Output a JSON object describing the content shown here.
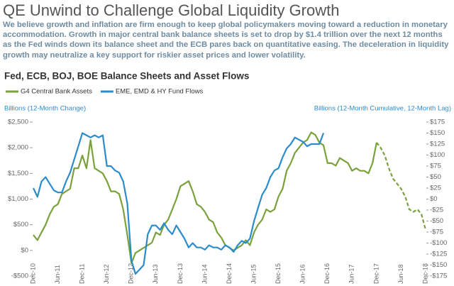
{
  "header": {
    "title": "QE Unwind to Challenge Global Liquidity Growth",
    "text": "We believe growth and inflation are firm enough to keep global policymakers moving toward a reduction in monetary accommodation. Growth in major central bank balance sheets is set to drop by $1.4 trillion over the next 12 months as the Fed winds down its balance sheet and the ECB pares back on quantitative easing. The deceleration in liquidity growth may neutralize a key support for riskier asset prices and lower volatility."
  },
  "chart_data": {
    "type": "line",
    "title": "Fed, ECB, BOJ, BOE Balance Sheets and Asset Flows",
    "ylabel": "Billions (12-Month Change)",
    "y2label": "Billions (12-Month Cumulative, 12-Month Lag)",
    "categories": [
      "Dec-10",
      null,
      null,
      null,
      null,
      null,
      "Jun-11",
      null,
      null,
      null,
      null,
      null,
      "Dec-11",
      null,
      null,
      null,
      null,
      null,
      "Jun-12",
      null,
      null,
      null,
      null,
      null,
      "Dec-12",
      null,
      null,
      null,
      null,
      null,
      "Jun-13",
      null,
      null,
      null,
      null,
      null,
      "Dec-13",
      null,
      null,
      null,
      null,
      null,
      "Jun-14",
      null,
      null,
      null,
      null,
      null,
      "Dec-14",
      null,
      null,
      null,
      null,
      null,
      "Jun-15",
      null,
      null,
      null,
      null,
      null,
      "Dec-15",
      null,
      null,
      null,
      null,
      null,
      "Jun-16",
      null,
      null,
      null,
      null,
      null,
      "Dec-16",
      null,
      null,
      null,
      null,
      null,
      "Jun-17",
      null,
      null,
      null,
      null,
      null,
      "Dec-17",
      null,
      null,
      null,
      null,
      null,
      "Jun-18",
      null,
      null,
      null,
      null,
      null,
      "Dec-18"
    ],
    "series": [
      {
        "name": "G4 Central Bank Assets",
        "color": "#7aa23c",
        "axis": "y",
        "dashed_from_index": 84,
        "values": [
          300,
          200,
          350,
          500,
          700,
          850,
          900,
          1100,
          1150,
          1200,
          1600,
          1600,
          1850,
          1600,
          2150,
          1600,
          1550,
          1500,
          1350,
          1150,
          1150,
          1100,
          800,
          300,
          -250,
          -50,
          0,
          50,
          100,
          150,
          350,
          300,
          500,
          600,
          800,
          1000,
          1250,
          1300,
          1350,
          1150,
          900,
          850,
          750,
          600,
          550,
          350,
          250,
          100,
          50,
          0,
          50,
          100,
          200,
          100,
          350,
          500,
          600,
          800,
          750,
          800,
          1050,
          1200,
          1550,
          1700,
          1900,
          2000,
          2100,
          2150,
          2300,
          2250,
          2100,
          2050,
          1700,
          1700,
          1650,
          1800,
          1750,
          1700,
          1550,
          1600,
          1550,
          1550,
          1500,
          1700,
          2100,
          2000,
          1850,
          1600,
          1400,
          1300,
          1200,
          1050,
          800,
          750,
          800,
          700,
          400
        ]
      },
      {
        "name": "EME, EMD & HY Fund Flows",
        "color": "#2b8ccc",
        "axis": "y2",
        "values": [
          25,
          5,
          40,
          50,
          35,
          20,
          15,
          15,
          40,
          60,
          90,
          120,
          150,
          145,
          140,
          145,
          140,
          145,
          75,
          75,
          65,
          60,
          40,
          -10,
          -140,
          -170,
          -160,
          -150,
          -80,
          -60,
          -60,
          -70,
          -55,
          -70,
          -80,
          -60,
          -75,
          -90,
          -110,
          -100,
          -110,
          -110,
          -115,
          -105,
          -110,
          -110,
          -115,
          -105,
          -110,
          -120,
          -105,
          -95,
          -100,
          -90,
          -50,
          -20,
          10,
          25,
          50,
          65,
          70,
          95,
          115,
          125,
          140,
          135,
          130,
          120,
          125,
          125,
          125,
          150,
          null,
          null,
          null,
          null,
          null,
          null,
          null,
          null,
          null,
          null,
          null,
          null,
          null,
          null,
          null,
          null,
          null,
          null,
          null,
          null,
          null,
          null,
          null,
          null,
          null
        ]
      }
    ],
    "ylim": [
      -500,
      2500
    ],
    "yticks": [
      {
        "value": 2500,
        "label": "$2,500"
      },
      {
        "value": 2000,
        "label": "$2,000"
      },
      {
        "value": 1500,
        "label": "$1,500"
      },
      {
        "value": 1000,
        "label": "$1,000"
      },
      {
        "value": 500,
        "label": "$500"
      },
      {
        "value": 0,
        "label": "$0"
      },
      {
        "value": -500,
        "label": "-$500"
      }
    ],
    "y2lim": [
      -175,
      175
    ],
    "y2ticks": [
      {
        "value": 175,
        "label": "$175"
      },
      {
        "value": 150,
        "label": "$150"
      },
      {
        "value": 125,
        "label": "$125"
      },
      {
        "value": 100,
        "label": "$100"
      },
      {
        "value": 75,
        "label": "$75"
      },
      {
        "value": 50,
        "label": "$50"
      },
      {
        "value": 25,
        "label": "$25"
      },
      {
        "value": 0,
        "label": "$0"
      },
      {
        "value": -25,
        "label": "-$25"
      },
      {
        "value": -50,
        "label": "-$50"
      },
      {
        "value": -75,
        "label": "-$75"
      },
      {
        "value": -100,
        "label": "-$100"
      },
      {
        "value": -125,
        "label": "-$125"
      },
      {
        "value": -150,
        "label": "-$150"
      },
      {
        "value": -175,
        "label": "-$175"
      }
    ],
    "grid": false
  }
}
